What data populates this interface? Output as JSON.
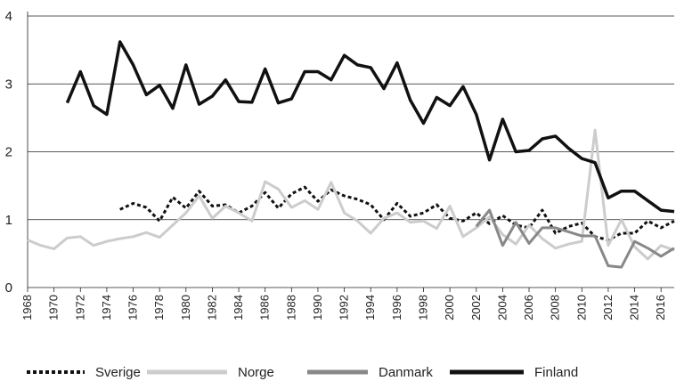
{
  "chart_data": {
    "type": "line",
    "x": [
      1968,
      1969,
      1970,
      1971,
      1972,
      1973,
      1974,
      1975,
      1976,
      1977,
      1978,
      1979,
      1980,
      1981,
      1982,
      1983,
      1984,
      1985,
      1986,
      1987,
      1988,
      1989,
      1990,
      1991,
      1992,
      1993,
      1994,
      1995,
      1996,
      1997,
      1998,
      1999,
      2000,
      2001,
      2002,
      2003,
      2004,
      2005,
      2006,
      2007,
      2008,
      2009,
      2010,
      2011,
      2012,
      2013,
      2014,
      2015,
      2016,
      2017
    ],
    "series": [
      {
        "name": "Sverige",
        "color": "#111111",
        "style": "dotted",
        "values": [
          null,
          null,
          null,
          null,
          null,
          null,
          null,
          1.15,
          1.24,
          1.18,
          0.98,
          1.33,
          1.17,
          1.42,
          1.2,
          1.22,
          1.1,
          1.2,
          1.4,
          1.17,
          1.38,
          1.48,
          1.27,
          1.44,
          1.35,
          1.3,
          1.22,
          1.0,
          1.24,
          1.05,
          1.1,
          1.22,
          1.02,
          0.98,
          1.1,
          0.94,
          1.06,
          0.92,
          0.88,
          1.14,
          0.8,
          0.9,
          0.95,
          0.75,
          0.7,
          0.8,
          0.8,
          0.98,
          0.88,
          0.98
        ]
      },
      {
        "name": "Norge",
        "color": "#cccccc",
        "style": "solid",
        "values": [
          0.7,
          0.62,
          0.57,
          0.73,
          0.75,
          0.62,
          0.68,
          0.72,
          0.75,
          0.81,
          0.74,
          0.92,
          1.1,
          1.35,
          1.02,
          1.2,
          1.1,
          0.98,
          1.56,
          1.45,
          1.18,
          1.28,
          1.15,
          1.55,
          1.1,
          0.98,
          0.8,
          1.02,
          1.1,
          0.96,
          0.98,
          0.87,
          1.2,
          0.75,
          0.88,
          1.04,
          0.78,
          0.64,
          0.92,
          0.72,
          0.58,
          0.64,
          0.68,
          2.32,
          0.62,
          1.0,
          0.6,
          0.42,
          0.62,
          0.55
        ]
      },
      {
        "name": "Danmark",
        "color": "#888888",
        "style": "solid",
        "values": [
          null,
          null,
          null,
          null,
          null,
          null,
          null,
          null,
          null,
          null,
          null,
          null,
          null,
          null,
          null,
          null,
          null,
          null,
          null,
          null,
          null,
          null,
          null,
          null,
          null,
          null,
          null,
          null,
          null,
          null,
          null,
          null,
          null,
          null,
          0.9,
          1.14,
          0.62,
          0.96,
          0.65,
          0.88,
          0.88,
          0.82,
          0.76,
          0.76,
          0.32,
          0.3,
          0.68,
          0.58,
          0.46,
          0.58
        ]
      },
      {
        "name": "Finland",
        "color": "#111111",
        "style": "solid",
        "values": [
          null,
          null,
          null,
          2.72,
          3.18,
          2.68,
          2.55,
          3.62,
          3.28,
          2.84,
          2.98,
          2.64,
          3.28,
          2.7,
          2.82,
          3.06,
          2.74,
          2.73,
          3.22,
          2.72,
          2.78,
          3.18,
          3.18,
          3.06,
          3.42,
          3.28,
          3.24,
          2.93,
          3.31,
          2.76,
          2.42,
          2.8,
          2.68,
          2.96,
          2.55,
          1.88,
          2.48,
          2.0,
          2.02,
          2.19,
          2.23,
          2.05,
          1.9,
          1.84,
          1.32,
          1.42,
          1.42,
          1.28,
          1.14,
          1.12
        ]
      }
    ],
    "xlim": [
      1968,
      2017
    ],
    "xticks": [
      1968,
      1970,
      1972,
      1974,
      1976,
      1978,
      1980,
      1982,
      1984,
      1986,
      1988,
      1990,
      1992,
      1994,
      1996,
      1998,
      2000,
      2002,
      2004,
      2006,
      2008,
      2010,
      2012,
      2014,
      2016
    ],
    "ylim": [
      0,
      4
    ],
    "yticks": [
      0,
      1,
      2,
      3,
      4
    ],
    "grid": true,
    "legend": "bottom"
  }
}
